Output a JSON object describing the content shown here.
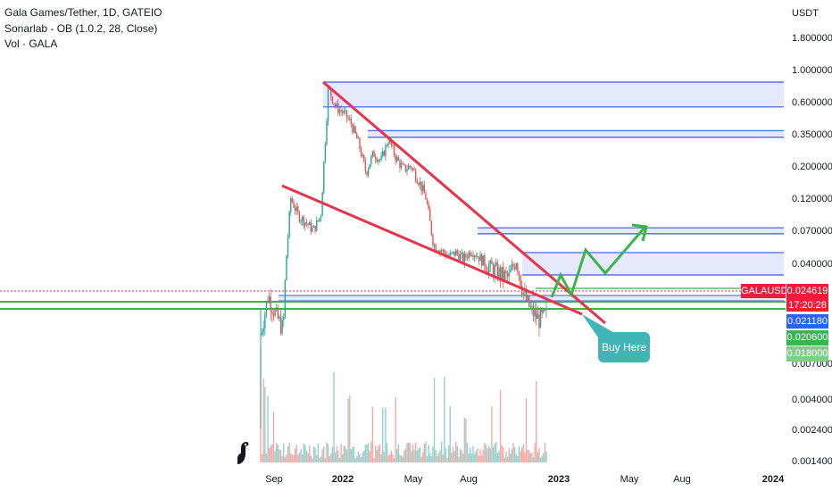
{
  "header": {
    "title": "Gala Games/Tether, 1D, GATEIO",
    "indicator": "Sonarlab - OB (1.0.2, 28, Close)",
    "volume": "Vol · GALA"
  },
  "axis": {
    "currency": "USDT",
    "price_ticks": [
      "1.800000",
      "1.000000",
      "0.600000",
      "0.350000",
      "0.200000",
      "0.120000",
      "0.070000",
      "0.040000",
      "0.007000",
      "0.004000",
      "0.002400",
      "0.001400"
    ],
    "time_ticks": [
      {
        "label": "Sep",
        "bold": false
      },
      {
        "label": "2022",
        "bold": true
      },
      {
        "label": "May",
        "bold": false
      },
      {
        "label": "Aug",
        "bold": false
      },
      {
        "label": "2023",
        "bold": true
      },
      {
        "label": "May",
        "bold": false
      },
      {
        "label": "Aug",
        "bold": false
      },
      {
        "label": "2024",
        "bold": true
      }
    ]
  },
  "tags": {
    "symbol": "GALAUSDT",
    "last_price": "0.024619",
    "countdown": "17:20:28",
    "blue_level": "0.021180",
    "green_level": "0.020600",
    "light_green_level": "0.018000"
  },
  "annotation": {
    "buy_label": "Buy Here"
  },
  "colors": {
    "up": "#26a69a",
    "down": "#ef5350",
    "wedge": "#e8334a",
    "zone_border": "#3a5bd9",
    "zone_fill": "#e6e9fb",
    "support": "#3bb54a",
    "arrow": "#3bb54a",
    "buy_bg": "#41b5b6"
  },
  "chart_data": {
    "type": "candlestick",
    "series_price": [
      0.021,
      0.03,
      0.025,
      0.022,
      0.12,
      0.09,
      0.08,
      0.07,
      0.09,
      0.75,
      0.55,
      0.5,
      0.42,
      0.3,
      0.18,
      0.25,
      0.22,
      0.32,
      0.23,
      0.19,
      0.2,
      0.16,
      0.12,
      0.055,
      0.05,
      0.045,
      0.048,
      0.043,
      0.05,
      0.045,
      0.04,
      0.038,
      0.036,
      0.035,
      0.042,
      0.03,
      0.026,
      0.024,
      0.025
    ],
    "order_block_zones": [
      {
        "low": 0.55,
        "high": 0.82
      },
      {
        "low": 0.33,
        "high": 0.37
      },
      {
        "low": 0.066,
        "high": 0.073
      },
      {
        "low": 0.036,
        "high": 0.048
      }
    ],
    "support_levels": [
      0.0206,
      0.018
    ]
  }
}
